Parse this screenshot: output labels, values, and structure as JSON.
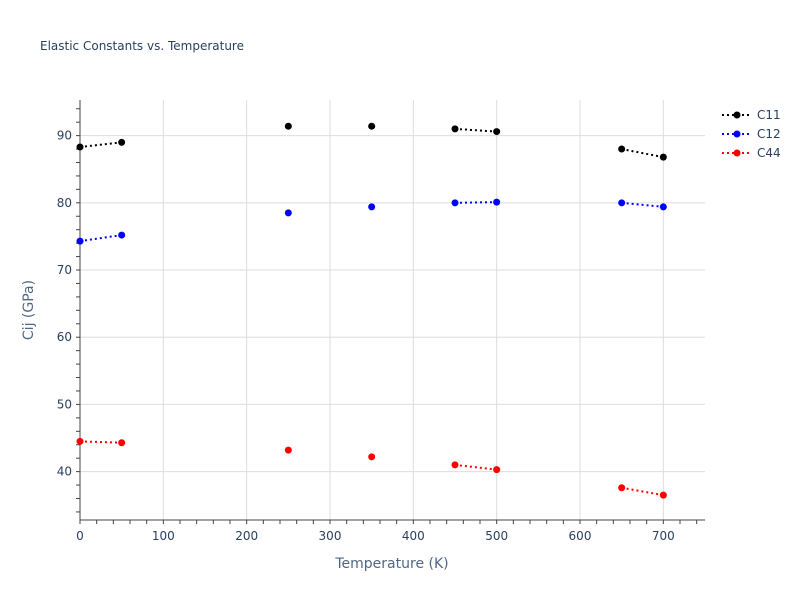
{
  "chart_data": {
    "type": "line",
    "title": "Elastic Constants vs. Temperature",
    "xlabel": "Temperature (K)",
    "ylabel": "Cij (GPa)",
    "xlim": [
      0,
      750
    ],
    "ylim": [
      32.8,
      95.3
    ],
    "xticks": [
      0,
      100,
      200,
      300,
      400,
      500,
      600,
      700
    ],
    "yticks": [
      40,
      50,
      60,
      70,
      80,
      90
    ],
    "grid": true,
    "legend_position": "top-right",
    "line_style": "dotted",
    "series": [
      {
        "name": "C11",
        "color": "#000000",
        "points": [
          [
            0,
            88.3
          ],
          [
            50,
            89.0
          ],
          [
            250,
            91.4
          ],
          [
            350,
            91.4
          ],
          [
            450,
            91.0
          ],
          [
            500,
            90.6
          ],
          [
            650,
            88.0
          ],
          [
            700,
            86.8
          ]
        ],
        "segments": [
          [
            0,
            1
          ],
          [
            4,
            5
          ],
          [
            6,
            7
          ]
        ]
      },
      {
        "name": "C12",
        "color": "#0000ff",
        "points": [
          [
            0,
            74.3
          ],
          [
            50,
            75.2
          ],
          [
            250,
            78.5
          ],
          [
            350,
            79.4
          ],
          [
            450,
            80.0
          ],
          [
            500,
            80.1
          ],
          [
            650,
            80.0
          ],
          [
            700,
            79.4
          ]
        ],
        "segments": [
          [
            0,
            1
          ],
          [
            4,
            5
          ],
          [
            6,
            7
          ]
        ]
      },
      {
        "name": "C44",
        "color": "#ff0000",
        "points": [
          [
            0,
            44.5
          ],
          [
            50,
            44.3
          ],
          [
            250,
            43.2
          ],
          [
            350,
            42.2
          ],
          [
            450,
            41.0
          ],
          [
            500,
            40.3
          ],
          [
            650,
            37.6
          ],
          [
            700,
            36.5
          ]
        ],
        "segments": [
          [
            0,
            1
          ],
          [
            4,
            5
          ],
          [
            6,
            7
          ]
        ]
      }
    ]
  }
}
